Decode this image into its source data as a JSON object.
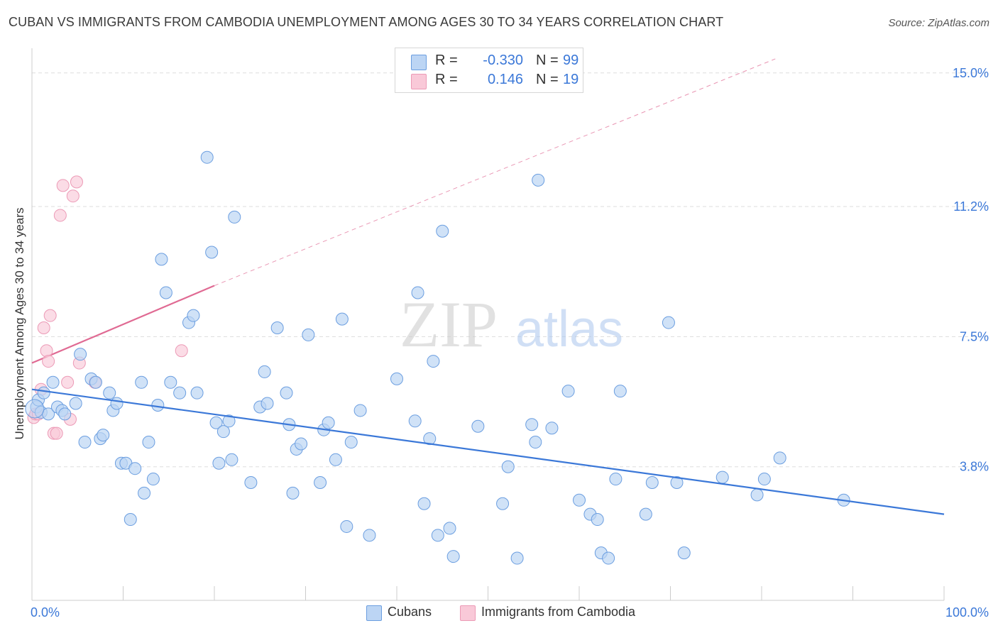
{
  "title": "CUBAN VS IMMIGRANTS FROM CAMBODIA UNEMPLOYMENT AMONG AGES 30 TO 34 YEARS CORRELATION CHART",
  "source": "Source: ZipAtlas.com",
  "watermark": {
    "zip": "ZIP",
    "atlas": "atlas"
  },
  "colors": {
    "blue": "#3b78d8",
    "blue_fill": "#bcd5f4",
    "blue_stroke": "#6b9ee0",
    "pink": "#e06a93",
    "pink_fill": "#f9c9d8",
    "pink_stroke": "#ec9ab6",
    "grid": "#dddddd",
    "axis_label": "#3b78d8"
  },
  "legend": {
    "items": [
      {
        "r_label": "R =",
        "r_value": "-0.330",
        "n_label": "N =",
        "n_value": "99"
      },
      {
        "r_label": "R =",
        "r_value": "0.146",
        "n_label": "N =",
        "n_value": "19"
      }
    ]
  },
  "bottom_legend": {
    "cubans": "Cubans",
    "cambodia": "Immigrants from Cambodia"
  },
  "chart_data": {
    "type": "scatter",
    "title": "CUBAN VS IMMIGRANTS FROM CAMBODIA UNEMPLOYMENT AMONG AGES 30 TO 34 YEARS CORRELATION CHART",
    "xlabel": "",
    "ylabel": "Unemployment Among Ages 30 to 34 years",
    "xlim": [
      0,
      100
    ],
    "ylim": [
      0,
      15.5
    ],
    "x_ticks": [
      "0.0%",
      "100.0%"
    ],
    "y_ticks": [
      {
        "value": 3.8,
        "label": "3.8%"
      },
      {
        "value": 7.5,
        "label": "7.5%"
      },
      {
        "value": 11.2,
        "label": "11.2%"
      },
      {
        "value": 15.0,
        "label": "15.0%"
      }
    ],
    "grid": true,
    "legend_position": "top-center",
    "series": [
      {
        "name": "Cubans",
        "color": "#3b78d8",
        "trend": {
          "x": [
            0,
            100
          ],
          "y": [
            6.0,
            2.45
          ],
          "dashed_extension": false
        },
        "points": [
          [
            0.5,
            5.5
          ],
          [
            0.7,
            5.7
          ],
          [
            1.0,
            5.35
          ],
          [
            1.3,
            5.9
          ],
          [
            1.8,
            5.3
          ],
          [
            2.3,
            6.2
          ],
          [
            2.8,
            5.5
          ],
          [
            3.3,
            5.4
          ],
          [
            3.6,
            5.3
          ],
          [
            4.8,
            5.6
          ],
          [
            5.3,
            7.0
          ],
          [
            5.8,
            4.5
          ],
          [
            6.5,
            6.3
          ],
          [
            7.0,
            6.2
          ],
          [
            7.5,
            4.6
          ],
          [
            7.8,
            4.7
          ],
          [
            8.5,
            5.9
          ],
          [
            8.9,
            5.4
          ],
          [
            9.3,
            5.6
          ],
          [
            9.8,
            3.9
          ],
          [
            10.3,
            3.9
          ],
          [
            10.8,
            2.3
          ],
          [
            11.3,
            3.75
          ],
          [
            12.0,
            6.2
          ],
          [
            12.3,
            3.05
          ],
          [
            12.8,
            4.5
          ],
          [
            13.3,
            3.45
          ],
          [
            13.8,
            5.55
          ],
          [
            14.2,
            9.7
          ],
          [
            14.7,
            8.75
          ],
          [
            15.2,
            6.2
          ],
          [
            16.2,
            5.9
          ],
          [
            17.2,
            7.9
          ],
          [
            17.7,
            8.1
          ],
          [
            18.1,
            5.9
          ],
          [
            19.2,
            12.6
          ],
          [
            19.7,
            9.9
          ],
          [
            20.2,
            5.05
          ],
          [
            20.5,
            3.9
          ],
          [
            21.0,
            4.8
          ],
          [
            21.6,
            5.1
          ],
          [
            21.9,
            4.0
          ],
          [
            22.2,
            10.9
          ],
          [
            24.0,
            3.35
          ],
          [
            25.0,
            5.5
          ],
          [
            25.5,
            6.5
          ],
          [
            25.8,
            5.6
          ],
          [
            26.9,
            7.75
          ],
          [
            27.9,
            5.9
          ],
          [
            28.2,
            5.0
          ],
          [
            28.6,
            3.05
          ],
          [
            29.0,
            4.3
          ],
          [
            29.5,
            4.45
          ],
          [
            30.3,
            7.55
          ],
          [
            31.6,
            3.35
          ],
          [
            32.0,
            4.85
          ],
          [
            32.5,
            5.05
          ],
          [
            33.3,
            4.0
          ],
          [
            34.0,
            8.0
          ],
          [
            34.5,
            2.1
          ],
          [
            35.0,
            4.5
          ],
          [
            36.0,
            5.4
          ],
          [
            37.0,
            1.85
          ],
          [
            40.0,
            6.3
          ],
          [
            42.0,
            5.1
          ],
          [
            42.3,
            8.75
          ],
          [
            43.0,
            2.75
          ],
          [
            43.6,
            4.6
          ],
          [
            44.0,
            6.8
          ],
          [
            44.5,
            1.85
          ],
          [
            45.0,
            10.5
          ],
          [
            45.8,
            2.05
          ],
          [
            46.2,
            1.25
          ],
          [
            48.9,
            4.95
          ],
          [
            51.6,
            2.75
          ],
          [
            52.2,
            3.8
          ],
          [
            53.2,
            1.2
          ],
          [
            54.8,
            5.0
          ],
          [
            55.2,
            4.5
          ],
          [
            55.5,
            11.95
          ],
          [
            57.0,
            4.9
          ],
          [
            58.8,
            5.95
          ],
          [
            60.0,
            2.85
          ],
          [
            61.2,
            2.45
          ],
          [
            62.0,
            2.3
          ],
          [
            62.4,
            1.35
          ],
          [
            63.2,
            1.2
          ],
          [
            64.0,
            3.45
          ],
          [
            64.5,
            5.95
          ],
          [
            67.3,
            2.45
          ],
          [
            68.0,
            3.35
          ],
          [
            69.8,
            7.9
          ],
          [
            70.7,
            3.35
          ],
          [
            71.5,
            1.35
          ],
          [
            75.7,
            3.5
          ],
          [
            79.5,
            3.0
          ],
          [
            80.3,
            3.45
          ],
          [
            82.0,
            4.05
          ],
          [
            89.0,
            2.85
          ]
        ]
      },
      {
        "name": "Immigrants from Cambodia",
        "color": "#e06a93",
        "trend": {
          "x": [
            0,
            20
          ],
          "y": [
            6.75,
            8.95
          ],
          "dashed_extension": {
            "x": [
              20,
              81.5
            ],
            "y": [
              8.95,
              15.4
            ]
          }
        },
        "points": [
          [
            0.2,
            5.2
          ],
          [
            0.4,
            5.3
          ],
          [
            0.7,
            5.3
          ],
          [
            1.0,
            6.0
          ],
          [
            1.3,
            7.75
          ],
          [
            1.6,
            7.1
          ],
          [
            1.8,
            6.8
          ],
          [
            2.0,
            8.1
          ],
          [
            2.4,
            4.75
          ],
          [
            2.7,
            4.75
          ],
          [
            3.1,
            10.95
          ],
          [
            3.4,
            11.8
          ],
          [
            3.9,
            6.2
          ],
          [
            4.2,
            5.15
          ],
          [
            4.5,
            11.5
          ],
          [
            4.9,
            11.9
          ],
          [
            5.2,
            6.75
          ],
          [
            6.9,
            6.2
          ],
          [
            16.4,
            7.1
          ]
        ]
      }
    ]
  }
}
